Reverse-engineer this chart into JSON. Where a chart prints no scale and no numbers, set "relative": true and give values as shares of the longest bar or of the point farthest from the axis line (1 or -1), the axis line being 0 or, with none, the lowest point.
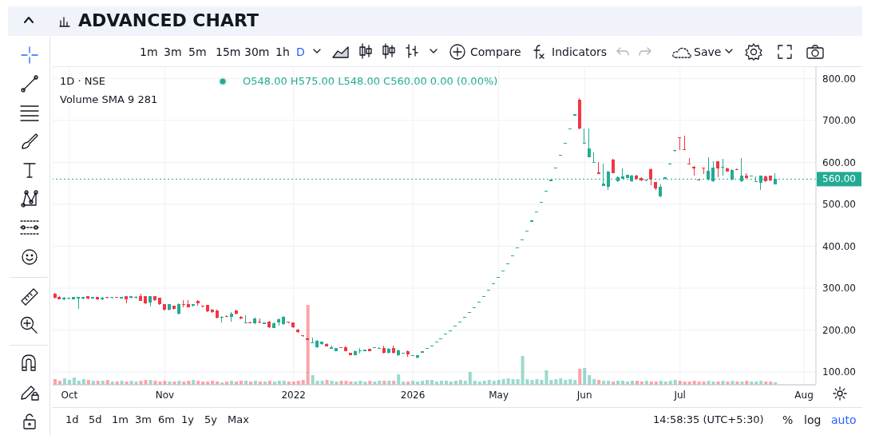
{
  "chart_data": [
    {
      "type": "candlestick",
      "title": "ADVANCED CHART",
      "categories": [
        null,
        null,
        null,
        "Oct",
        null,
        null,
        null,
        null,
        null,
        null,
        null,
        null,
        null,
        null,
        null,
        null,
        null,
        null,
        null,
        null,
        null,
        null,
        null,
        "Nov",
        null,
        null,
        null,
        null,
        null,
        null,
        null,
        null,
        null,
        null,
        null,
        null,
        null,
        null,
        null,
        null,
        null,
        null,
        null,
        null,
        null,
        null,
        null,
        null,
        null,
        null,
        "2022",
        null,
        null,
        null,
        null,
        null,
        null,
        null,
        null,
        null,
        null,
        null,
        null,
        null,
        null,
        null,
        null,
        null,
        null,
        null,
        null,
        null,
        null,
        null,
        null,
        "2026",
        null,
        null,
        null,
        null,
        null,
        null,
        null,
        null,
        null,
        null,
        null,
        null,
        null,
        null,
        null,
        null,
        null,
        "May",
        null,
        null,
        null,
        null,
        null,
        null,
        null,
        null,
        null,
        null,
        null,
        null,
        null,
        null,
        null,
        null,
        null,
        "Jun",
        null,
        null,
        null,
        null,
        null,
        null,
        null,
        null,
        null,
        null,
        null,
        null,
        null,
        null,
        null,
        null,
        null,
        null,
        null,
        "Jul",
        null,
        null,
        null,
        null,
        null,
        null,
        null,
        null,
        null,
        null,
        null,
        null,
        null,
        null,
        null,
        null,
        null,
        null,
        null,
        null,
        null,
        null,
        null,
        null,
        null,
        "Aug",
        null,
        null
      ],
      "ohlc": [
        [
          287,
          288,
          276,
          277
        ],
        [
          280,
          281,
          273,
          274
        ],
        [
          273,
          280,
          271,
          277
        ],
        [
          275,
          277,
          274,
          276
        ],
        [
          274,
          280,
          273,
          279
        ],
        [
          276,
          280,
          250,
          279
        ],
        [
          275,
          280,
          274,
          279
        ],
        [
          281,
          282,
          274,
          275
        ],
        [
          276,
          280,
          275,
          279
        ],
        [
          279,
          280,
          272,
          273
        ],
        [
          273,
          279,
          272,
          278
        ],
        [
          279,
          280,
          276,
          277
        ],
        [
          277,
          279,
          276,
          278
        ],
        [
          279,
          279,
          277,
          278
        ],
        [
          276,
          280,
          275,
          279
        ],
        [
          281,
          282,
          264,
          274
        ],
        [
          277,
          282,
          276,
          281
        ],
        [
          277,
          281,
          276,
          280
        ],
        [
          281,
          287,
          269,
          270
        ],
        [
          281,
          282,
          263,
          264
        ],
        [
          266,
          282,
          257,
          281
        ],
        [
          281,
          282,
          270,
          271
        ],
        [
          277,
          278,
          261,
          262
        ],
        [
          262,
          263,
          247,
          248
        ],
        [
          248,
          263,
          247,
          262
        ],
        [
          258,
          259,
          249,
          250
        ],
        [
          239,
          264,
          238,
          263
        ],
        [
          262,
          271,
          255,
          260
        ],
        [
          262,
          271,
          254,
          255
        ],
        [
          258,
          263,
          257,
          262
        ],
        [
          270,
          271,
          258,
          264
        ],
        [
          257,
          258,
          255,
          256
        ],
        [
          260,
          261,
          244,
          245
        ],
        [
          249,
          250,
          242,
          243
        ],
        [
          247,
          248,
          228,
          229
        ],
        [
          229,
          233,
          218,
          232
        ],
        [
          234,
          235,
          232,
          233
        ],
        [
          231,
          243,
          220,
          239
        ],
        [
          247,
          248,
          238,
          239
        ],
        [
          232,
          233,
          226,
          227
        ],
        [
          217,
          236,
          216,
          218
        ],
        [
          219,
          220,
          216,
          217
        ],
        [
          217,
          229,
          214,
          228
        ],
        [
          219,
          228,
          217,
          218
        ],
        [
          215,
          219,
          214,
          218
        ],
        [
          221,
          222,
          206,
          207
        ],
        [
          206,
          218,
          205,
          217
        ],
        [
          218,
          227,
          210,
          226
        ],
        [
          214,
          233,
          212,
          232
        ],
        [
          219,
          220,
          217,
          218
        ],
        [
          218,
          219,
          206,
          207
        ],
        [
          202,
          203,
          194,
          195
        ],
        [
          187,
          188,
          185,
          186
        ],
        [
          181,
          182,
          176,
          177
        ],
        [
          169,
          183,
          168,
          170
        ],
        [
          159,
          176,
          158,
          175
        ],
        [
          167,
          173,
          166,
          172
        ],
        [
          167,
          168,
          161,
          162
        ],
        [
          156,
          163,
          155,
          159
        ],
        [
          150,
          158,
          149,
          157
        ],
        [
          159,
          160,
          157,
          158
        ],
        [
          160,
          161,
          149,
          150
        ],
        [
          146,
          147,
          140,
          141
        ],
        [
          141,
          151,
          140,
          150
        ],
        [
          151,
          157,
          145,
          152
        ],
        [
          150,
          154,
          149,
          153
        ],
        [
          155,
          156,
          149,
          150
        ],
        [
          158,
          160,
          157,
          159
        ],
        [
          157,
          159,
          156,
          158
        ],
        [
          158,
          163,
          145,
          146
        ],
        [
          146,
          157,
          145,
          156
        ],
        [
          157,
          163,
          145,
          146
        ],
        [
          140,
          153,
          139,
          152
        ],
        [
          145,
          147,
          144,
          146
        ],
        [
          150,
          151,
          137,
          143
        ],
        [
          139,
          141,
          138,
          140
        ],
        [
          134,
          141,
          133,
          140
        ],
        [
          147,
          149,
          147,
          149
        ],
        [
          155,
          157,
          155,
          157
        ],
        [
          161,
          163,
          161,
          163
        ],
        [
          170,
          172,
          170,
          172
        ],
        [
          179,
          181,
          179,
          181
        ],
        [
          189,
          191,
          189,
          191
        ],
        [
          198,
          200,
          198,
          200
        ],
        [
          208,
          210,
          208,
          210
        ],
        [
          219,
          221,
          219,
          221
        ],
        [
          230,
          232,
          230,
          232
        ],
        [
          241,
          243,
          241,
          243
        ],
        [
          253,
          255,
          253,
          255
        ],
        [
          265,
          267,
          265,
          267
        ],
        [
          279,
          281,
          279,
          281
        ],
        [
          294,
          296,
          294,
          296
        ],
        [
          309,
          311,
          309,
          311
        ],
        [
          324,
          326,
          324,
          326
        ],
        [
          340,
          342,
          340,
          342
        ],
        [
          357,
          359,
          357,
          359
        ],
        [
          376,
          378,
          376,
          378
        ],
        [
          395,
          397,
          395,
          397
        ],
        [
          414,
          416,
          414,
          416
        ],
        [
          435,
          437,
          435,
          437
        ],
        [
          459,
          461,
          459,
          461
        ],
        [
          481,
          483,
          481,
          483
        ],
        [
          504,
          506,
          504,
          506
        ],
        [
          531,
          533,
          531,
          533
        ],
        [
          556,
          558,
          556,
          558
        ],
        [
          585,
          587,
          585,
          587
        ],
        [
          615,
          617,
          615,
          617
        ],
        [
          645,
          647,
          645,
          647
        ],
        [
          679,
          681,
          679,
          681
        ],
        [
          712,
          714,
          712,
          714
        ],
        [
          750,
          752,
          678,
          680
        ],
        [
          645,
          681,
          644,
          647
        ],
        [
          613,
          681,
          612,
          634
        ],
        [
          600,
          624,
          599,
          601
        ],
        [
          576,
          601,
          572,
          573
        ],
        [
          544,
          597,
          543,
          550
        ],
        [
          542,
          580,
          534,
          578
        ],
        [
          607,
          608,
          574,
          575
        ],
        [
          555,
          566,
          554,
          565
        ],
        [
          561,
          586,
          560,
          567
        ],
        [
          563,
          571,
          562,
          570
        ],
        [
          555,
          570,
          554,
          568
        ],
        [
          568,
          570,
          559,
          560
        ],
        [
          563,
          565,
          556,
          557
        ],
        [
          557,
          559,
          556,
          558
        ],
        [
          584,
          585,
          545,
          558
        ],
        [
          553,
          554,
          535,
          538
        ],
        [
          518,
          547,
          517,
          542
        ],
        [
          560,
          565,
          559,
          564
        ],
        [
          596,
          598,
          595,
          597
        ],
        [
          627,
          629,
          626,
          628
        ],
        [
          659,
          660,
          630,
          658
        ],
        [
          632,
          663,
          629,
          630
        ],
        [
          597,
          610,
          595,
          596
        ],
        [
          590,
          591,
          568,
          585
        ],
        [
          559,
          560,
          557,
          558
        ],
        [
          587,
          588,
          573,
          586
        ],
        [
          558,
          612,
          557,
          580
        ],
        [
          555,
          603,
          553,
          588
        ],
        [
          602,
          603,
          564,
          586
        ],
        [
          587,
          608,
          568,
          588
        ],
        [
          586,
          587,
          577,
          578
        ],
        [
          558,
          583,
          557,
          582
        ],
        [
          584,
          585,
          582,
          583
        ],
        [
          555,
          611,
          554,
          568
        ],
        [
          568,
          574,
          561,
          562
        ],
        [
          567,
          569,
          566,
          568
        ],
        [
          554,
          567,
          553,
          555
        ],
        [
          551,
          568,
          535,
          568
        ],
        [
          567,
          568,
          553,
          555
        ],
        [
          568,
          569,
          556,
          557
        ],
        [
          548,
          575,
          548,
          560
        ],
        null,
        null,
        null,
        null,
        null,
        null,
        null,
        null
      ],
      "colors": [
        "#f23645",
        "#f23645",
        "#22ab94",
        "#22ab94",
        "#22ab94",
        "#22ab94",
        "#22ab94",
        "#f23645",
        "#22ab94",
        "#f23645",
        "#22ab94",
        "#f23645",
        "#22ab94",
        "#f23645",
        "#22ab94",
        "#f23645",
        "#22ab94",
        "#22ab94",
        "#f23645",
        "#f23645",
        "#22ab94",
        "#f23645",
        "#f23645",
        "#f23645",
        "#22ab94",
        "#f23645",
        "#22ab94",
        "#f23645",
        "#f23645",
        "#22ab94",
        "#f23645",
        "#f23645",
        "#f23645",
        "#f23645",
        "#f23645",
        "#22ab94",
        "#f23645",
        "#22ab94",
        "#f23645",
        "#f23645",
        "#22ab94",
        "#f23645",
        "#22ab94",
        "#f23645",
        "#22ab94",
        "#f23645",
        "#22ab94",
        "#22ab94",
        "#22ab94",
        "#f23645",
        "#f23645",
        "#f23645",
        "#f23645",
        "#f23645",
        "#22ab94",
        "#22ab94",
        "#22ab94",
        "#f23645",
        "#22ab94",
        "#22ab94",
        "#f23645",
        "#f23645",
        "#f23645",
        "#22ab94",
        "#22ab94",
        "#22ab94",
        "#f23645",
        "#22ab94",
        "#22ab94",
        "#f23645",
        "#22ab94",
        "#f23645",
        "#22ab94",
        "#22ab94",
        "#f23645",
        "#22ab94",
        "#22ab94",
        "#22ab94",
        "#22ab94",
        "#22ab94",
        "#22ab94",
        "#22ab94",
        "#22ab94",
        "#22ab94",
        "#22ab94",
        "#22ab94",
        "#22ab94",
        "#22ab94",
        "#22ab94",
        "#22ab94",
        "#22ab94",
        "#22ab94",
        "#22ab94",
        "#22ab94",
        "#22ab94",
        "#22ab94",
        "#22ab94",
        "#22ab94",
        "#22ab94",
        "#22ab94",
        "#22ab94",
        "#22ab94",
        "#22ab94",
        "#22ab94",
        "#22ab94",
        "#22ab94",
        "#22ab94",
        "#22ab94",
        "#22ab94",
        "#22ab94",
        "#f23645",
        "#22ab94",
        "#22ab94",
        "#22ab94",
        "#f23645",
        "#22ab94",
        "#22ab94",
        "#f23645",
        "#22ab94",
        "#22ab94",
        "#22ab94",
        "#22ab94",
        "#f23645",
        "#f23645",
        "#22ab94",
        "#f23645",
        "#f23645",
        "#22ab94",
        "#22ab94",
        "#22ab94",
        "#22ab94",
        "#f23645",
        "#f23645",
        "#f23645",
        "#f23645",
        "#f23645",
        "#f23645",
        "#22ab94",
        "#22ab94",
        "#f23645",
        "#22ab94",
        "#f23645",
        "#22ab94",
        "#f23645",
        "#22ab94",
        "#f23645",
        "#22ab94",
        "#22ab94",
        "#22ab94",
        "#f23645",
        "#f23645",
        "#22ab94",
        null,
        null,
        null,
        null,
        null,
        null,
        null,
        null
      ],
      "ylim": [
        70,
        829
      ],
      "yticks": [
        {
          "value": 100,
          "label": "100.00"
        },
        {
          "value": 200,
          "label": "200.00"
        },
        {
          "value": 300,
          "label": "300.00"
        },
        {
          "value": 400,
          "label": "400.00"
        },
        {
          "value": 500,
          "label": "500.00"
        },
        {
          "value": 600,
          "label": "600.00"
        },
        {
          "value": 700,
          "label": "700.00"
        },
        {
          "value": 800,
          "label": "800.00"
        }
      ],
      "grid": true,
      "ref_lines": [
        {
          "axis": "y",
          "value": 560,
          "label": "560.00",
          "color": "#22ab94",
          "line_style": "dotted"
        }
      ],
      "annotations": [
        "1D · NSE",
        "O548.00 H575.00 L548.00 C560.00 0.00 (0.00%)",
        "Volume SMA 9 281",
        "1m",
        "3m",
        "5m",
        "15m",
        "30m",
        "1h",
        "D",
        "Compare",
        "Indicators",
        "Save",
        "1d",
        "5d",
        "1m",
        "3m",
        "6m",
        "1y",
        "5y",
        "Max",
        "14:58:35 (UTC+5:30)",
        "%",
        "log",
        "auto"
      ]
    },
    {
      "type": "bar",
      "relative": true,
      "categories": [
        null,
        null,
        null,
        null,
        null,
        null,
        null,
        null,
        null,
        null,
        null,
        null,
        null,
        null,
        null,
        null,
        null,
        null,
        null,
        null,
        null,
        null,
        null,
        null,
        null,
        null,
        null,
        null,
        null,
        null,
        null,
        null,
        null,
        null,
        null,
        null,
        null,
        null,
        null,
        null,
        null,
        null,
        null,
        null,
        null,
        null,
        null,
        null,
        null,
        null,
        null,
        null,
        null,
        null,
        null,
        null,
        null,
        null,
        null,
        null,
        null,
        null,
        null,
        null,
        null,
        null,
        null,
        null,
        null,
        null,
        null,
        null,
        null,
        null,
        null,
        null,
        null,
        null,
        null,
        null,
        null,
        null,
        null,
        null,
        null,
        null,
        null,
        null,
        null,
        null,
        null,
        null,
        null,
        null,
        null,
        null,
        null,
        null,
        null,
        null,
        null,
        null,
        null,
        null,
        null,
        null,
        null,
        null,
        null,
        null,
        null,
        null,
        null,
        null,
        null,
        null,
        null,
        null,
        null,
        null,
        null,
        null,
        null,
        null,
        null,
        null,
        null,
        null,
        null,
        null,
        null,
        null,
        null,
        null,
        null,
        null,
        null,
        null,
        null,
        null,
        null,
        null,
        null,
        null,
        null,
        null,
        null,
        null,
        null,
        null,
        null,
        null,
        null,
        null,
        null,
        null,
        null,
        null,
        null,
        null
      ],
      "colors": [
        "#f23645",
        "#f23645",
        "#22ab94",
        "#22ab94",
        "#22ab94",
        "#22ab94",
        "#22ab94",
        "#f23645",
        "#22ab94",
        "#f23645",
        "#22ab94",
        "#f23645",
        "#22ab94",
        "#f23645",
        "#22ab94",
        "#f23645",
        "#22ab94",
        "#22ab94",
        "#f23645",
        "#f23645",
        "#22ab94",
        "#f23645",
        "#f23645",
        "#f23645",
        "#22ab94",
        "#f23645",
        "#22ab94",
        "#f23645",
        "#f23645",
        "#22ab94",
        "#f23645",
        "#f23645",
        "#f23645",
        "#f23645",
        "#f23645",
        "#22ab94",
        "#f23645",
        "#22ab94",
        "#f23645",
        "#f23645",
        "#22ab94",
        "#f23645",
        "#22ab94",
        "#f23645",
        "#22ab94",
        "#f23645",
        "#22ab94",
        "#22ab94",
        "#22ab94",
        "#f23645",
        "#f23645",
        "#f23645",
        "#f23645",
        "#f23645",
        "#22ab94",
        "#22ab94",
        "#22ab94",
        "#f23645",
        "#22ab94",
        "#22ab94",
        "#f23645",
        "#f23645",
        "#f23645",
        "#22ab94",
        "#22ab94",
        "#22ab94",
        "#f23645",
        "#22ab94",
        "#22ab94",
        "#f23645",
        "#22ab94",
        "#f23645",
        "#22ab94",
        "#22ab94",
        "#f23645",
        "#22ab94",
        "#22ab94",
        "#22ab94",
        "#22ab94",
        "#22ab94",
        "#22ab94",
        "#22ab94",
        "#22ab94",
        "#22ab94",
        "#22ab94",
        "#22ab94",
        "#22ab94",
        "#22ab94",
        "#22ab94",
        "#22ab94",
        "#22ab94",
        "#22ab94",
        "#22ab94",
        "#22ab94",
        "#22ab94",
        "#22ab94",
        "#22ab94",
        "#22ab94",
        "#22ab94",
        "#22ab94",
        "#22ab94",
        "#22ab94",
        "#22ab94",
        "#22ab94",
        "#22ab94",
        "#22ab94",
        "#22ab94",
        "#22ab94",
        "#22ab94",
        "#22ab94",
        "#f23645",
        "#22ab94",
        "#22ab94",
        "#22ab94",
        "#f23645",
        "#22ab94",
        "#22ab94",
        "#f23645",
        "#22ab94",
        "#22ab94",
        "#22ab94",
        "#22ab94",
        "#f23645",
        "#f23645",
        "#22ab94",
        "#f23645",
        "#f23645",
        "#22ab94",
        "#22ab94",
        "#22ab94",
        "#22ab94",
        "#f23645",
        "#f23645",
        "#f23645",
        "#f23645",
        "#f23645",
        "#f23645",
        "#22ab94",
        "#22ab94",
        "#f23645",
        "#22ab94",
        "#f23645",
        "#22ab94",
        "#f23645",
        "#22ab94",
        "#f23645",
        "#22ab94",
        "#22ab94",
        "#22ab94",
        "#f23645",
        "#f23645",
        "#22ab94",
        null,
        null,
        null,
        null,
        null,
        null,
        null,
        null
      ],
      "values": [
        0.07,
        0.05,
        0.08,
        0.06,
        0.09,
        0.05,
        0.07,
        0.06,
        0.05,
        0.05,
        0.05,
        0.06,
        0.04,
        0.04,
        0.05,
        0.04,
        0.05,
        0.04,
        0.05,
        0.06,
        0.06,
        0.05,
        0.04,
        0.05,
        0.04,
        0.04,
        0.05,
        0.04,
        0.05,
        0.06,
        0.05,
        0.04,
        0.04,
        0.05,
        0.04,
        0.03,
        0.04,
        0.05,
        0.04,
        0.05,
        0.05,
        0.04,
        0.05,
        0.04,
        0.04,
        0.05,
        0.04,
        0.05,
        0.05,
        0.04,
        0.04,
        0.05,
        0.06,
        1.0,
        0.12,
        0.05,
        0.05,
        0.06,
        0.05,
        0.04,
        0.05,
        0.05,
        0.04,
        0.04,
        0.05,
        0.04,
        0.05,
        0.04,
        0.05,
        0.05,
        0.05,
        0.05,
        0.13,
        0.04,
        0.04,
        0.05,
        0.04,
        0.05,
        0.06,
        0.06,
        0.04,
        0.05,
        0.05,
        0.04,
        0.05,
        0.06,
        0.05,
        0.16,
        0.05,
        0.04,
        0.05,
        0.06,
        0.05,
        0.06,
        0.07,
        0.08,
        0.07,
        0.07,
        0.36,
        0.07,
        0.06,
        0.07,
        0.06,
        0.18,
        0.06,
        0.07,
        0.08,
        0.06,
        0.07,
        0.06,
        0.2,
        0.21,
        0.12,
        0.07,
        0.06,
        0.05,
        0.05,
        0.04,
        0.05,
        0.05,
        0.04,
        0.05,
        0.05,
        0.04,
        0.05,
        0.04,
        0.04,
        0.05,
        0.04,
        0.05,
        0.06,
        0.05,
        0.04,
        0.04,
        0.05,
        0.04,
        0.04,
        0.05,
        0.04,
        0.04,
        0.05,
        0.04,
        0.05,
        0.04,
        0.04,
        0.05,
        0.04,
        0.04,
        0.05,
        0.04,
        0.04,
        0.03,
        null,
        null,
        null,
        null,
        null,
        null,
        null,
        null
      ]
    }
  ]
}
